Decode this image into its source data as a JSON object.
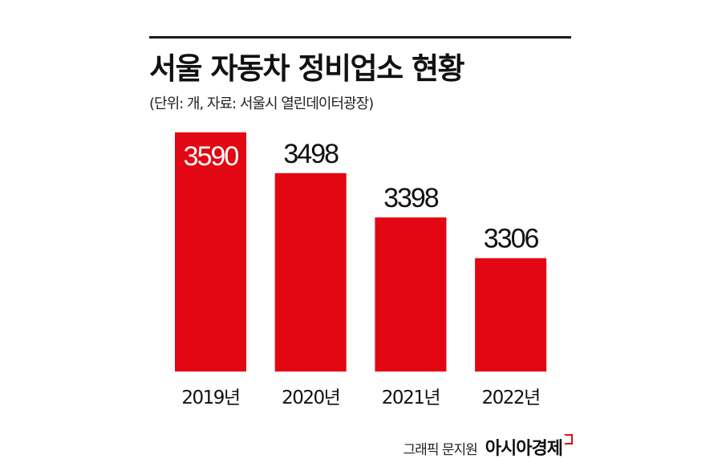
{
  "header": {
    "title": "서울 자동차 정비업소 현황",
    "subtitle": "(단위: 개, 자료: 서울시 열린데이터광장)"
  },
  "footer": {
    "credit": "그래픽 문지원",
    "brand": "아시아경제"
  },
  "colors": {
    "bar": "#e30613",
    "label_dark": "#111111",
    "label_light": "#ffffff"
  },
  "chart_data": {
    "type": "bar",
    "categories": [
      "2019년",
      "2020년",
      "2021년",
      "2022년"
    ],
    "values": [
      3590,
      3498,
      3398,
      3306
    ],
    "title": "서울 자동차 정비업소 현황",
    "xlabel": "",
    "ylabel": "",
    "ylim": [
      3050,
      3590
    ],
    "grid": false,
    "legend": "none"
  }
}
